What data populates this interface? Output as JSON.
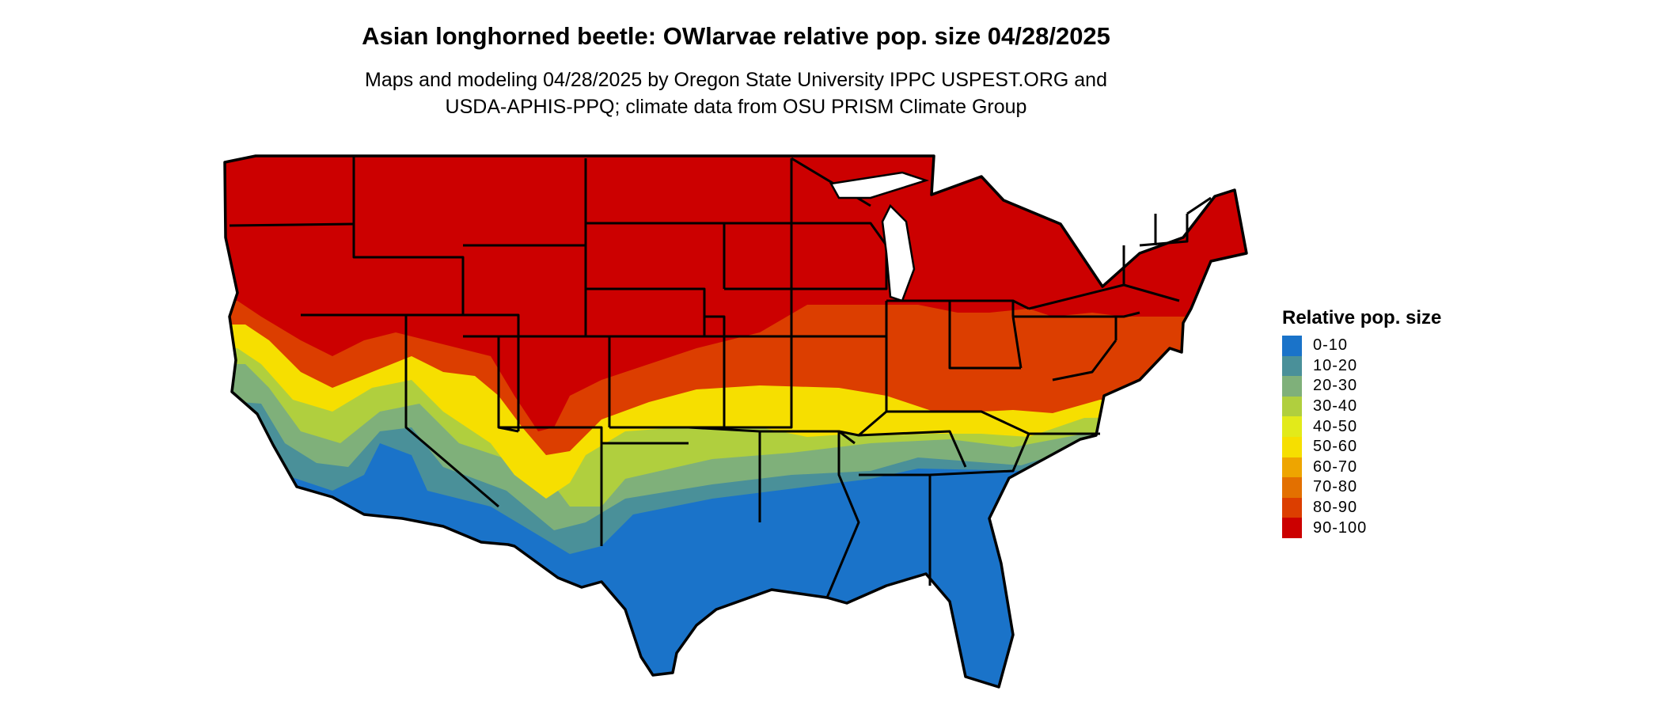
{
  "title": "Asian longhorned beetle: OWlarvae relative pop. size 04/28/2025",
  "subtitle_line1": "Maps and modeling 04/28/2025 by Oregon State University IPPC USPEST.ORG and",
  "subtitle_line2": "USDA-APHIS-PPQ; climate data from OSU PRISM Climate Group",
  "legend": {
    "title": "Relative pop. size",
    "items": [
      {
        "label": "0-10",
        "color": "#1a73c9"
      },
      {
        "label": "10-20",
        "color": "#4a9099"
      },
      {
        "label": "20-30",
        "color": "#7fb07a"
      },
      {
        "label": "30-40",
        "color": "#b0cf3e"
      },
      {
        "label": "40-50",
        "color": "#e2ea1a"
      },
      {
        "label": "50-60",
        "color": "#f6df00"
      },
      {
        "label": "60-70",
        "color": "#eea500"
      },
      {
        "label": "70-80",
        "color": "#e37000"
      },
      {
        "label": "80-90",
        "color": "#dc3e00"
      },
      {
        "label": "90-100",
        "color": "#cc0000"
      }
    ]
  },
  "map": {
    "region": "contiguous-united-states",
    "outline_color": "#000000"
  }
}
